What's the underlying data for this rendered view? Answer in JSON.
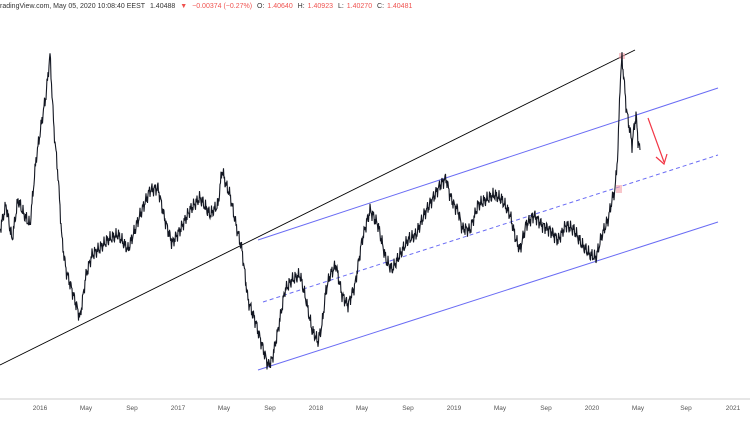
{
  "header": {
    "source": "radingView.com, May 05, 2020 10:08:40 EEST",
    "price": "1.40488",
    "change_arrow": "▼",
    "change": "−0.00374 (−0.27%)",
    "o_label": "O:",
    "o_value": "1.40640",
    "h_label": "H:",
    "h_value": "1.40923",
    "l_label": "L:",
    "l_value": "1.40270",
    "c_label": "C:",
    "c_value": "1.40481"
  },
  "chart_data": {
    "type": "line",
    "x_ticks": [
      "2016",
      "May",
      "Sep",
      "2017",
      "May",
      "Sep",
      "2018",
      "May",
      "Sep",
      "2019",
      "May",
      "Sep",
      "2020",
      "May",
      "Sep",
      "2021"
    ],
    "x_range": [
      "2015-09",
      "2021-01"
    ],
    "grid": false,
    "series": [
      {
        "x": [
          0,
          6,
          12,
          18,
          24,
          30,
          36,
          42,
          46,
          50,
          54,
          58,
          62,
          66,
          72,
          80,
          86,
          92,
          100,
          108,
          118,
          128,
          140,
          150,
          158,
          165,
          172,
          180,
          190,
          200,
          210,
          218,
          222,
          226,
          230,
          236,
          242,
          248,
          255,
          262,
          268,
          272,
          278,
          285,
          292,
          300,
          306,
          312,
          318,
          322,
          326,
          330,
          336,
          342,
          348,
          355,
          362,
          370,
          378,
          386,
          392,
          400,
          408,
          416,
          424,
          432,
          440,
          446,
          450,
          454,
          458,
          462,
          470,
          478,
          486,
          494,
          502,
          510,
          516,
          520,
          526,
          534,
          542,
          550,
          558,
          566,
          574,
          582,
          590,
          596,
          602,
          608,
          612,
          615,
          618,
          620,
          622,
          624,
          626,
          628,
          630,
          632,
          634,
          636,
          638,
          640
        ],
        "y": [
          230,
          205,
          240,
          200,
          215,
          225,
          160,
          120,
          95,
          55,
          130,
          175,
          240,
          270,
          290,
          318,
          275,
          255,
          248,
          240,
          235,
          250,
          215,
          190,
          188,
          220,
          243,
          230,
          210,
          198,
          215,
          205,
          170,
          185,
          195,
          225,
          250,
          300,
          320,
          345,
          365,
          360,
          330,
          290,
          280,
          275,
          300,
          330,
          342,
          325,
          290,
          275,
          265,
          295,
          305,
          285,
          240,
          210,
          225,
          260,
          270,
          255,
          240,
          235,
          215,
          200,
          185,
          178,
          195,
          205,
          210,
          228,
          230,
          205,
          200,
          195,
          200,
          215,
          240,
          250,
          225,
          215,
          225,
          230,
          240,
          225,
          230,
          245,
          255,
          258,
          235,
          220,
          200,
          190,
          150,
          85,
          58,
          80,
          105,
          120,
          130,
          145,
          128,
          115,
          140,
          150
        ]
      }
    ]
  },
  "colors": {
    "price_line": "#131722",
    "channel": "#6a6cf4",
    "trendline": "#000000",
    "arrow": "#f23645",
    "marker": "#f4a0a8",
    "axis_text": "#555555"
  }
}
